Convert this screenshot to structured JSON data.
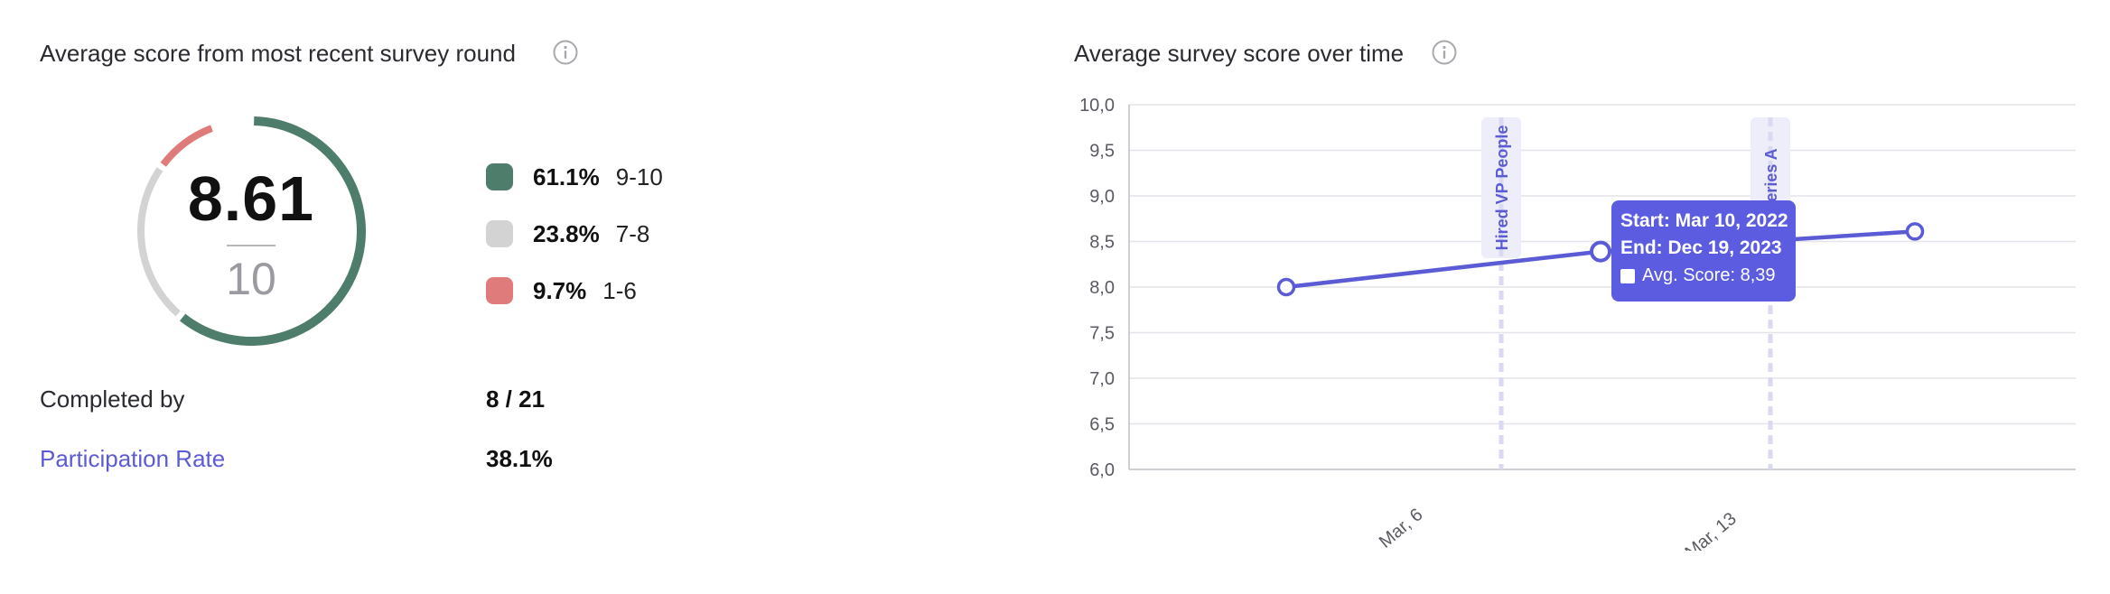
{
  "left_panel": {
    "title": "Average score from most recent survey round",
    "score": "8.61",
    "score_max": "10",
    "distribution": [
      {
        "percent": "61.1%",
        "range": "9-10",
        "color": "#4f7d6b",
        "fraction": 0.611
      },
      {
        "percent": "23.8%",
        "range": "7-8",
        "color": "#d3d3d3",
        "fraction": 0.238
      },
      {
        "percent": "9.7%",
        "range": "1-6",
        "color": "#e07b7b",
        "fraction": 0.097
      }
    ],
    "completed_label": "Completed by",
    "completed_value": "8 / 21",
    "participation_label": "Participation Rate",
    "participation_value": "38.1%"
  },
  "right_panel": {
    "title": "Average survey score over time"
  },
  "chart_data": {
    "type": "line",
    "y_tick_labels": [
      "10,0",
      "9,5",
      "9,0",
      "8,5",
      "8,0",
      "7,5",
      "7,0",
      "6,5",
      "6,0"
    ],
    "ylim": [
      6.0,
      10.0
    ],
    "x_tick_labels": [
      "Mar, 6",
      "Mar, 13"
    ],
    "points": [
      8.0,
      8.39,
      8.61
    ],
    "annotations": [
      {
        "label": "Hired VP People"
      },
      {
        "label": "d Series A"
      }
    ],
    "tooltip": {
      "start": "Start: Mar 10, 2022",
      "end": "End: Dec 19, 2023",
      "series": "Avg. Score: 8,39"
    },
    "line_color": "#5b5bd6",
    "grid": true
  }
}
